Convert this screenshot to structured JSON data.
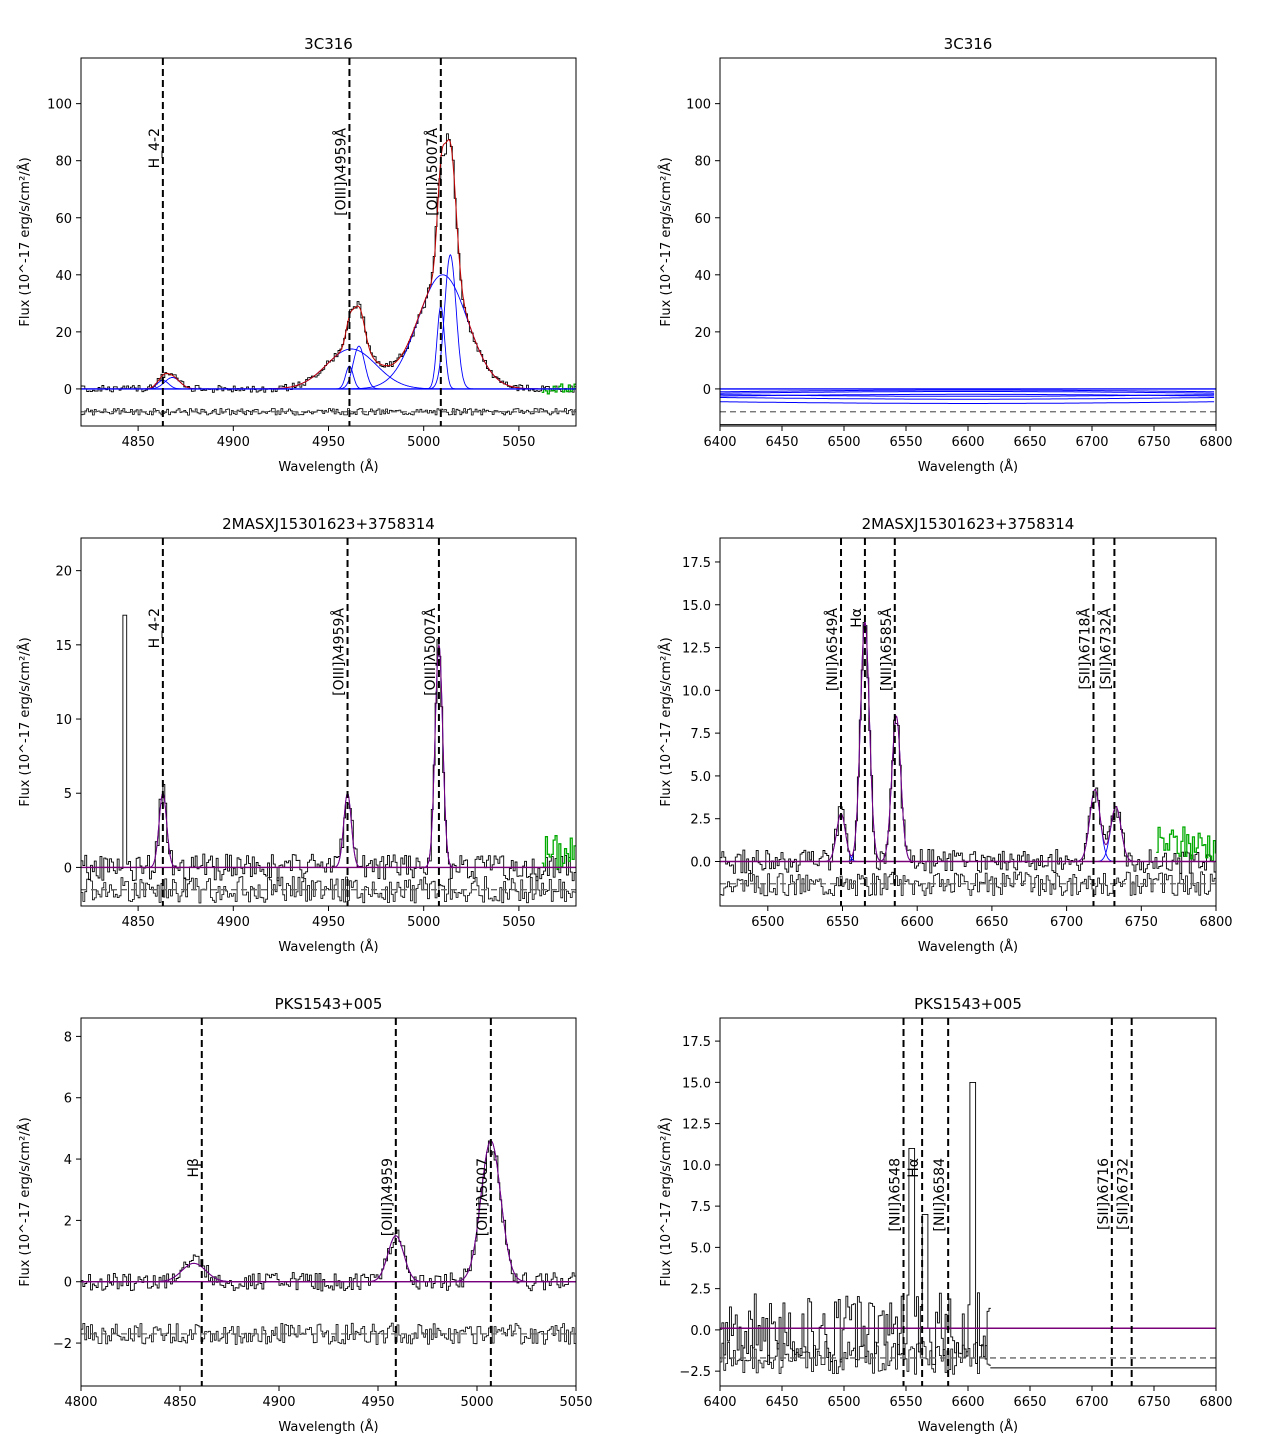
{
  "figure_title": "",
  "panel_titles": [
    "3C316",
    "3C316",
    "2MASXJ15301623+3758314",
    "2MASXJ15301623+3758314",
    "PKS1543+005",
    "PKS1543+005"
  ],
  "xlabel": "Wavelength (Å)",
  "ylabel": "Flux (10^-17 erg/s/cm²/Å)",
  "colors": {
    "data": "#000000",
    "fit": "#c00000",
    "component": "#0000ff",
    "masked": "#00aa00",
    "dashed_ref": "#666666",
    "model_total": "#7a007a"
  },
  "chart_data": [
    {
      "type": "line",
      "panel": "3C316 Hβ-[OIII]",
      "title": "3C316",
      "xlim": [
        4820,
        5080
      ],
      "ylim": [
        -13,
        116
      ],
      "xticks": [
        4850,
        4900,
        4950,
        5000,
        5050
      ],
      "yticks": [
        0,
        20,
        40,
        60,
        80,
        100
      ],
      "baseline": 0,
      "residual_level": -8,
      "mask_start": 5062,
      "lines": [
        {
          "label": "H_4-2",
          "x": 4863
        },
        {
          "label": "[OIII]λ4959Å",
          "x": 4961
        },
        {
          "label": "[OIII]λ5007Å",
          "x": 5009
        }
      ],
      "components": [
        {
          "center": 4863,
          "amp": 3,
          "sigma": 3
        },
        {
          "center": 4868,
          "amp": 4,
          "sigma": 4
        },
        {
          "center": 4961,
          "amp": 8,
          "sigma": 2
        },
        {
          "center": 4966,
          "amp": 15,
          "sigma": 3
        },
        {
          "center": 4962,
          "amp": 14,
          "sigma": 13
        },
        {
          "center": 5009,
          "amp": 29,
          "sigma": 2
        },
        {
          "center": 5014,
          "amp": 47,
          "sigma": 3
        },
        {
          "center": 5010,
          "amp": 40,
          "sigma": 13
        }
      ],
      "noise": 1.2,
      "residual_noise": 1.2,
      "spike_at": null
    },
    {
      "type": "line",
      "panel": "3C316 Hα-[SII]",
      "title": "3C316",
      "xlim": [
        6400,
        6800
      ],
      "ylim": [
        -13,
        116
      ],
      "xticks": [
        6400,
        6450,
        6500,
        6550,
        6600,
        6650,
        6700,
        6750,
        6800
      ],
      "yticks": [
        0,
        20,
        40,
        60,
        80,
        100
      ],
      "baseline": 0,
      "residual_level": -8,
      "mask_start": null,
      "lines": [],
      "components": [],
      "flat_curves": [
        -1.5,
        -2,
        -2.5,
        -3,
        -1,
        -4.5
      ],
      "noise": 0,
      "residual_noise": 0,
      "spike_at": null
    },
    {
      "type": "line",
      "panel": "2MASXJ15301623+3758314 Hβ-[OIII]",
      "title": "2MASXJ15301623+3758314",
      "xlim": [
        4820,
        5080
      ],
      "ylim": [
        -2.6,
        22.2
      ],
      "xticks": [
        4850,
        4900,
        4950,
        5000,
        5050
      ],
      "yticks": [
        0,
        5,
        10,
        15,
        20
      ],
      "baseline": 0,
      "residual_level": -1.5,
      "mask_start": 5062,
      "lines": [
        {
          "label": "H_4-2",
          "x": 4863
        },
        {
          "label": "[OIII]λ4959Å",
          "x": 4960
        },
        {
          "label": "[OIII]λ5007Å",
          "x": 5008
        }
      ],
      "components": [
        {
          "center": 4863,
          "amp": 5,
          "sigma": 2
        },
        {
          "center": 4960,
          "amp": 5,
          "sigma": 2
        },
        {
          "center": 5008,
          "amp": 15,
          "sigma": 2
        }
      ],
      "noise": 0.9,
      "residual_noise": 0.9,
      "spike_at": 4843
    },
    {
      "type": "line",
      "panel": "2MASXJ15301623+3758314 Hα-[SII]",
      "title": "2MASXJ15301623+3758314",
      "xlim": [
        6468,
        6800
      ],
      "ylim": [
        -2.6,
        18.9
      ],
      "xticks": [
        6500,
        6550,
        6600,
        6650,
        6700,
        6750,
        6800
      ],
      "yticks": [
        0.0,
        2.5,
        5.0,
        7.5,
        10.0,
        12.5,
        15.0,
        17.5
      ],
      "baseline": 0,
      "residual_level": -1.3,
      "mask_start": 6760,
      "lines": [
        {
          "label": "[NII]λ6549Å",
          "x": 6549
        },
        {
          "label": "Hα",
          "x": 6565
        },
        {
          "label": "[NII]λ6585Å",
          "x": 6585
        },
        {
          "label": "[SII]λ6718Å",
          "x": 6718
        },
        {
          "label": "[SII]λ6732Å",
          "x": 6732
        }
      ],
      "components": [
        {
          "center": 6549,
          "amp": 2.8,
          "sigma": 3
        },
        {
          "center": 6565,
          "amp": 14,
          "sigma": 3
        },
        {
          "center": 6586,
          "amp": 8.5,
          "sigma": 3
        },
        {
          "center": 6719,
          "amp": 4.2,
          "sigma": 3.5
        },
        {
          "center": 6733,
          "amp": 3.2,
          "sigma": 3.5
        }
      ],
      "noise": 0.7,
      "residual_noise": 0.7,
      "spike_at": null
    },
    {
      "type": "line",
      "panel": "PKS1543+005 Hβ-[OIII]",
      "title": "PKS1543+005",
      "xlim": [
        4800,
        5050
      ],
      "ylim": [
        -3.4,
        8.6
      ],
      "xticks": [
        4800,
        4850,
        4900,
        4950,
        5000,
        5050
      ],
      "yticks": [
        -2,
        0,
        2,
        4,
        6,
        8
      ],
      "baseline": 0,
      "residual_level": -1.7,
      "mask_start": null,
      "lines": [
        {
          "label": "Hβ",
          "x": 4861
        },
        {
          "label": "[OIII]λ4959",
          "x": 4959
        },
        {
          "label": "[OIII]λ5007",
          "x": 5007
        }
      ],
      "components": [
        {
          "center": 4857,
          "amp": 0.6,
          "sigma": 6
        },
        {
          "center": 4959,
          "amp": 1.5,
          "sigma": 4
        },
        {
          "center": 5007,
          "amp": 4.6,
          "sigma": 5
        }
      ],
      "noise": 0.3,
      "residual_noise": 0.35,
      "spike_at": null
    },
    {
      "type": "line",
      "panel": "PKS1543+005 Hα-[SII]",
      "title": "PKS1543+005",
      "xlim": [
        6400,
        6800
      ],
      "ylim": [
        -3.4,
        18.9
      ],
      "xticks": [
        6400,
        6450,
        6500,
        6550,
        6600,
        6650,
        6700,
        6750,
        6800
      ],
      "yticks": [
        -2.5,
        0.0,
        2.5,
        5.0,
        7.5,
        10.0,
        12.5,
        15.0,
        17.5
      ],
      "baseline": 0.1,
      "residual_level": -1.7,
      "mask_start": null,
      "data_end": 6618,
      "lines": [
        {
          "label": "[NII]λ6548",
          "x": 6548
        },
        {
          "label": "Hα",
          "x": 6563
        },
        {
          "label": "[NII]λ6584",
          "x": 6584
        },
        {
          "label": "[SII]λ6716",
          "x": 6716
        },
        {
          "label": "[SII]λ6732",
          "x": 6732
        }
      ],
      "components": [],
      "noise": 2.2,
      "residual_noise": 1.0,
      "spike_at": null
    }
  ]
}
